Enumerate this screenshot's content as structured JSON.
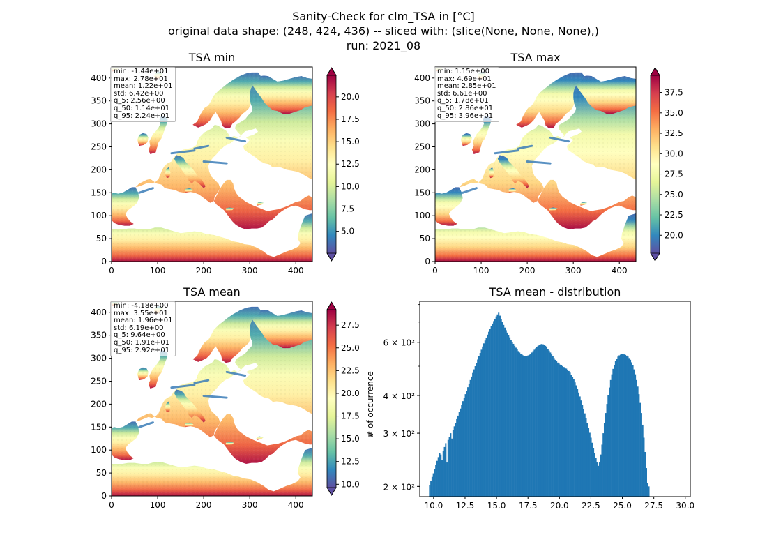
{
  "suptitle": {
    "line1": "Sanity-Check for clm_TSA in [°C]",
    "line2": "original data shape: (248, 424, 436) -- sliced with: (slice(None, None, None),)",
    "line3": "run: 2021_08"
  },
  "colors": {
    "spectral_r": [
      "#5e4fa2",
      "#3288bd",
      "#66c2a5",
      "#abdda4",
      "#e6f598",
      "#ffffbf",
      "#fee08b",
      "#fdae61",
      "#f46d43",
      "#d53e4f",
      "#9e0142"
    ],
    "histogram_bar": "#1f77b4",
    "sea": "#ffffff"
  },
  "maps": [
    {
      "id": "min",
      "title": "TSA min",
      "x_ticks": [
        0,
        100,
        200,
        300,
        400
      ],
      "y_ticks": [
        0,
        50,
        100,
        150,
        200,
        250,
        300,
        350,
        400
      ],
      "xlim": [
        0,
        436
      ],
      "ylim": [
        0,
        424
      ],
      "colorbar": {
        "vmin": 2.56,
        "vmax": 22.4,
        "ticks": [
          "5.0",
          "7.5",
          "10.0",
          "12.5",
          "15.0",
          "17.5",
          "20.0"
        ],
        "tick_values": [
          5.0,
          7.5,
          10.0,
          12.5,
          15.0,
          17.5,
          20.0
        ],
        "extend": "both"
      },
      "stats": [
        "min: -1.44e+01",
        "max: 2.78e+01",
        "mean: 1.22e+01",
        "std: 6.42e+00",
        "q_5: 2.56e+00",
        "q_50: 1.14e+01",
        "q_95: 2.24e+01"
      ]
    },
    {
      "id": "max",
      "title": "TSA max",
      "x_ticks": [
        0,
        100,
        200,
        300,
        400
      ],
      "y_ticks": [
        0,
        50,
        100,
        150,
        200,
        250,
        300,
        350,
        400
      ],
      "xlim": [
        0,
        436
      ],
      "ylim": [
        0,
        424
      ],
      "colorbar": {
        "vmin": 17.8,
        "vmax": 39.6,
        "ticks": [
          "20.0",
          "22.5",
          "25.0",
          "27.5",
          "30.0",
          "32.5",
          "35.0",
          "37.5"
        ],
        "tick_values": [
          20.0,
          22.5,
          25.0,
          27.5,
          30.0,
          32.5,
          35.0,
          37.5
        ],
        "extend": "both"
      },
      "stats": [
        "min: 1.15e+00",
        "max: 4.69e+01",
        "mean: 2.85e+01",
        "std: 6.61e+00",
        "q_5: 1.78e+01",
        "q_50: 2.86e+01",
        "q_95: 3.96e+01"
      ]
    },
    {
      "id": "mean",
      "title": "TSA mean",
      "x_ticks": [
        0,
        100,
        200,
        300,
        400
      ],
      "y_ticks": [
        0,
        50,
        100,
        150,
        200,
        250,
        300,
        350,
        400
      ],
      "xlim": [
        0,
        436
      ],
      "ylim": [
        0,
        424
      ],
      "colorbar": {
        "vmin": 9.64,
        "vmax": 29.2,
        "ticks": [
          "10.0",
          "12.5",
          "15.0",
          "17.5",
          "20.0",
          "22.5",
          "25.0",
          "27.5"
        ],
        "tick_values": [
          10.0,
          12.5,
          15.0,
          17.5,
          20.0,
          22.5,
          25.0,
          27.5
        ],
        "extend": "both"
      },
      "stats": [
        "min: -4.18e+00",
        "max: 3.55e+01",
        "mean: 1.96e+01",
        "std: 6.19e+00",
        "q_5: 9.64e+00",
        "q_50: 1.91e+01",
        "q_95: 2.92e+01"
      ]
    }
  ],
  "chart_data": {
    "type": "bar",
    "title": "TSA mean - distribution",
    "xlabel": "",
    "ylabel": "# of occurrence",
    "yscale": "log",
    "xlim": [
      8.9,
      30.4
    ],
    "ylim": [
      185,
      820
    ],
    "x_ticks": [
      "10.0",
      "12.5",
      "15.0",
      "17.5",
      "20.0",
      "22.5",
      "25.0",
      "27.5",
      "30.0"
    ],
    "x_tick_values": [
      10.0,
      12.5,
      15.0,
      17.5,
      20.0,
      22.5,
      25.0,
      27.5,
      30.0
    ],
    "y_ticks": [
      "2 × 10²",
      "3 × 10²",
      "4 × 10²",
      "6 × 10²"
    ],
    "y_tick_values": [
      200,
      300,
      400,
      600
    ],
    "grid": false,
    "bin_start": 9.64,
    "bin_width": 0.0978,
    "values": [
      202,
      208,
      215,
      221,
      228,
      235,
      243,
      250,
      258,
      255,
      245,
      262,
      270,
      278,
      240,
      285,
      292,
      300,
      288,
      307,
      316,
      325,
      334,
      343,
      353,
      362,
      372,
      383,
      393,
      404,
      415,
      426,
      438,
      450,
      462,
      475,
      488,
      500,
      513,
      526,
      540,
      553,
      567,
      581,
      595,
      608,
      622,
      636,
      650,
      664,
      678,
      692,
      705,
      718,
      731,
      742,
      752,
      735,
      715,
      700,
      685,
      671,
      658,
      646,
      634,
      623,
      612,
      602,
      593,
      584,
      576,
      568,
      561,
      555,
      550,
      546,
      543,
      541,
      540,
      541,
      543,
      546,
      550,
      555,
      561,
      567,
      573,
      579,
      584,
      588,
      591,
      592,
      591,
      588,
      584,
      578,
      571,
      563,
      555,
      547,
      539,
      532,
      525,
      519,
      514,
      510,
      506,
      503,
      500,
      497,
      494,
      491,
      487,
      482,
      476,
      469,
      461,
      452,
      442,
      432,
      421,
      409,
      397,
      385,
      373,
      361,
      349,
      337,
      325,
      313,
      301,
      290,
      279,
      268,
      258,
      248,
      240,
      234,
      240,
      255,
      275,
      300,
      325,
      350,
      375,
      400,
      425,
      450,
      470,
      490,
      505,
      520,
      530,
      538,
      543,
      546,
      548,
      548,
      547,
      545,
      542,
      538,
      532,
      525,
      515,
      503,
      488,
      470,
      450,
      428,
      404,
      378,
      350,
      320,
      290,
      260,
      230,
      205,
      200
    ]
  }
}
